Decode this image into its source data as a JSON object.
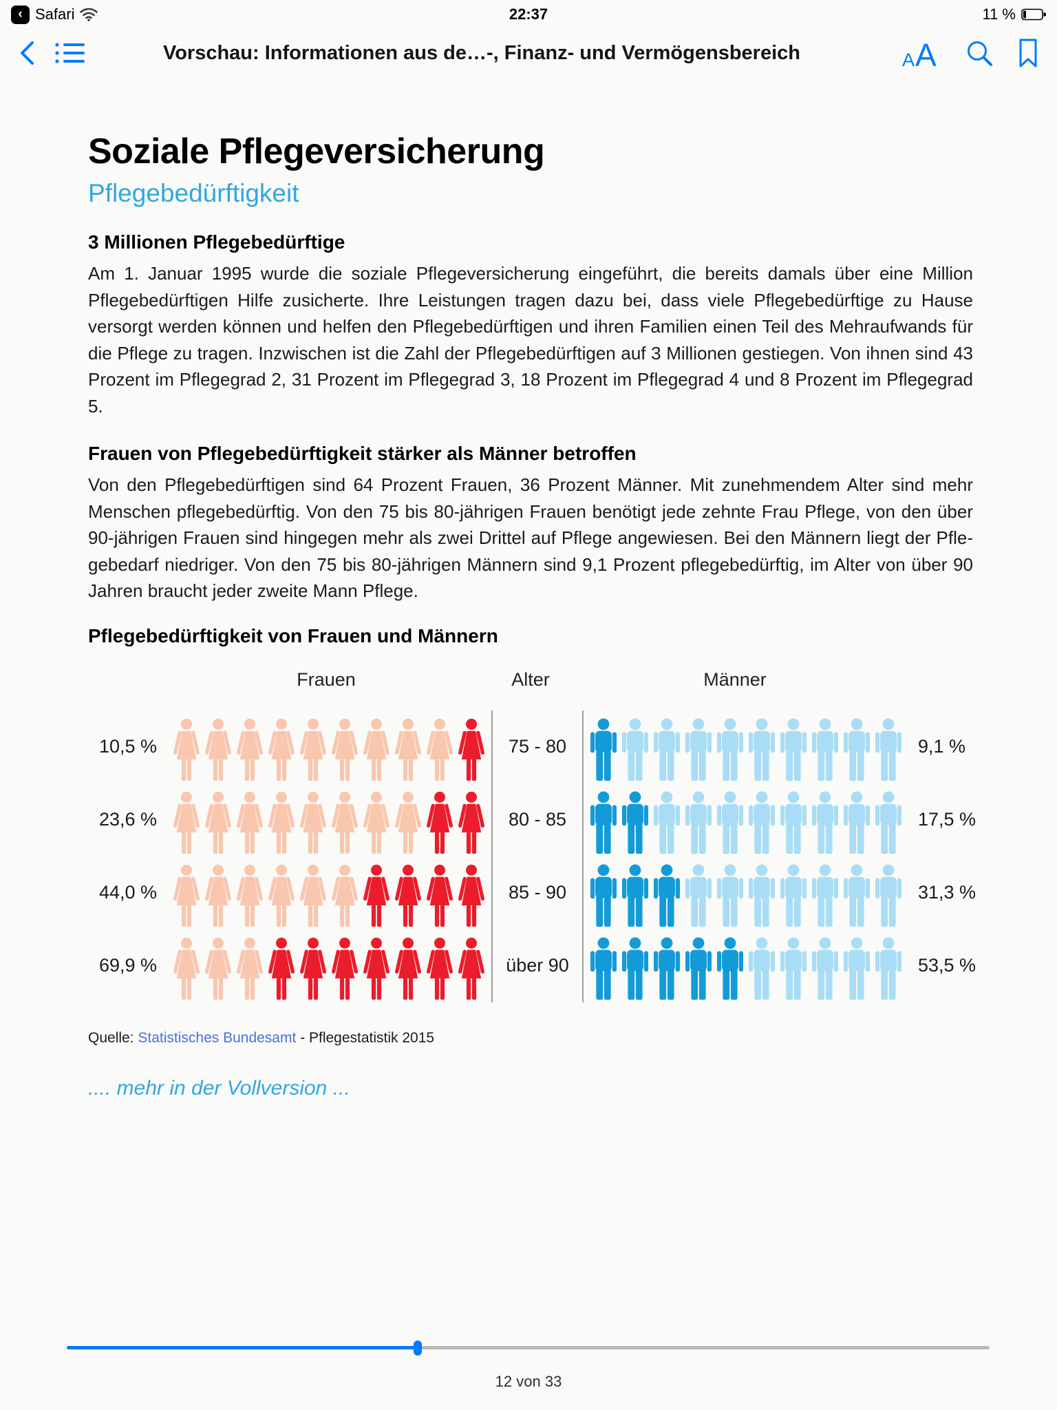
{
  "colors": {
    "accent_blue": "#007aff",
    "accent_lightblue": "#2fa8e1",
    "source_link_blue": "#4a6fe4",
    "background": "#fafaf8"
  },
  "status_bar": {
    "back_app_label": "Safari",
    "time": "22:37",
    "battery_text": "11 %",
    "battery_level": 11,
    "icons": [
      "app-back-icon",
      "wifi-icon",
      "battery-icon"
    ]
  },
  "nav_bar": {
    "title": "Vorschau: Informationen aus de…-, Finanz- und Vermögensbereich",
    "icons": [
      "back-chevron-icon",
      "toc-list-icon",
      "font-size-icon",
      "search-icon",
      "bookmark-icon"
    ]
  },
  "article": {
    "title": "Soziale Pflegeversicherung",
    "subtitle": "Pflegebedürftigkeit",
    "sections": [
      {
        "heading": "3 Millionen Pflegebedürftige",
        "body": "Am 1. Januar 1995 wurde die soziale Pflegeversicherung eingeführt, die bereits damals über eine Million Pflegebedürftigen Hilfe zusicherte. Ihre Leistungen tragen dazu bei, dass viele Pflegebedürftige zu Hause versorgt werden können und helfen den Pflegebedürftigen und ihren Familien einen Teil des Mehraufwands für die Pflege zu tragen. Inzwischen ist die Zahl der Pflegebedürftigen auf 3 Millionen gestiegen. Von ihnen sind 43 Prozent im Pflegegrad 2, 31 Prozent im Pflegegrad 3, 18 Prozent im Pflegegrad 4 und 8 Prozent im Pflegegrad 5."
      },
      {
        "heading": "Frauen von Pflegebedürftigkeit stärker als Männer betroffen",
        "body": "Von den Pflegebedürftigen sind 64 Prozent Frauen, 36 Prozent Männer. Mit zuneh­mendem Alter sind mehr Menschen pflegebedürftig. Von den 75 bis 80-jährigen Frauen benötigt jede zehnte Frau Pflege, von den über 90-jährigen Frauen sind hin­gegen mehr als zwei Drittel auf Pflege angewiesen. Bei den Männern liegt der Pfle­gebedarf niedriger. Von den 75 bis 80-jährigen Männern sind 9,1 Prozent pflegebedürftig, im Alter von über 90 Jahren braucht jeder zweite Mann Pflege."
      }
    ],
    "more_link": ".... mehr in der Vollversion ..."
  },
  "chart_data": {
    "type": "pictogram",
    "title": "Pflegebedürftigkeit von Frauen und Männern",
    "column_headers": [
      "Frauen",
      "Alter",
      "Männer"
    ],
    "icons_per_group": 10,
    "rows": [
      {
        "age": "75 - 80",
        "frauen_label": "10,5 %",
        "frauen_value": 10.5,
        "frauen_icons_highlighted": 1,
        "maenner_label": "9,1 %",
        "maenner_value": 9.1,
        "maenner_icons_highlighted": 1
      },
      {
        "age": "80 - 85",
        "frauen_label": "23,6 %",
        "frauen_value": 23.6,
        "frauen_icons_highlighted": 2,
        "maenner_label": "17,5 %",
        "maenner_value": 17.5,
        "maenner_icons_highlighted": 2
      },
      {
        "age": "85 - 90",
        "frauen_label": "44,0 %",
        "frauen_value": 44.0,
        "frauen_icons_highlighted": 4,
        "maenner_label": "31,3 %",
        "maenner_value": 31.3,
        "maenner_icons_highlighted": 3
      },
      {
        "age": "über 90",
        "frauen_label": "69,9 %",
        "frauen_value": 69.9,
        "frauen_icons_highlighted": 7,
        "maenner_label": "53,5 %",
        "maenner_value": 53.5,
        "maenner_icons_highlighted": 5
      }
    ],
    "highlight_direction": {
      "frauen": "right",
      "maenner": "left"
    },
    "colors": {
      "frauen_base": "#f9c6ae",
      "frauen_highlight": "#eb1c2b",
      "maenner_base": "#a9ddf5",
      "maenner_highlight": "#129bd8",
      "divider": "#9e9e9e"
    },
    "source": {
      "prefix": "Quelle: ",
      "link": "Statistisches Bundesamt",
      "suffix": " - Pflegestatistik 2015"
    }
  },
  "footer": {
    "page_label": "12 von 33",
    "progress_percent": 38
  }
}
